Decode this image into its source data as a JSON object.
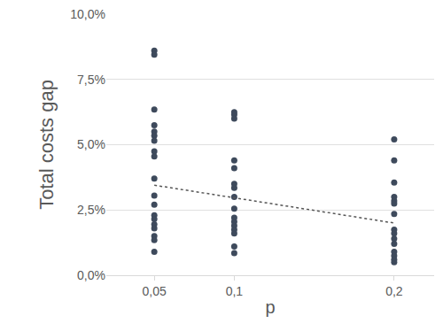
{
  "chart_data": {
    "type": "scatter",
    "x_label": "p",
    "y_label": "Total costs gap",
    "xlim": [
      0.02,
      0.225
    ],
    "xticks": [
      {
        "value": 0.05,
        "label": "0,05"
      },
      {
        "value": 0.1,
        "label": "0,1"
      },
      {
        "value": 0.2,
        "label": "0,2"
      }
    ],
    "ylim": [
      0,
      10
    ],
    "yticks": [
      {
        "value": 0,
        "label": "0,0%"
      },
      {
        "value": 2.5,
        "label": "2,5%"
      },
      {
        "value": 5,
        "label": "5,0%"
      },
      {
        "value": 7.5,
        "label": "7,5%"
      },
      {
        "value": 10,
        "label": "10,0%"
      }
    ],
    "grid": true,
    "series": [
      {
        "type": "scatter",
        "marker": "circle",
        "color": "#3e4a5c",
        "x": [
          0.05,
          0.05,
          0.05,
          0.05,
          0.05,
          0.05,
          0.05,
          0.05,
          0.05,
          0.05,
          0.05,
          0.05,
          0.05,
          0.05,
          0.05,
          0.05,
          0.05,
          0.05,
          0.05,
          0.1,
          0.1,
          0.1,
          0.1,
          0.1,
          0.1,
          0.1,
          0.1,
          0.1,
          0.1,
          0.1,
          0.1,
          0.1,
          0.1,
          0.1,
          0.1,
          0.2,
          0.2,
          0.2,
          0.2,
          0.2,
          0.2,
          0.2,
          0.2,
          0.2,
          0.2,
          0.2,
          0.2,
          0.2,
          0.2,
          0.2
        ],
        "values": [
          8.6,
          8.45,
          6.35,
          5.75,
          5.5,
          5.35,
          5.15,
          4.75,
          4.55,
          3.7,
          3.05,
          2.7,
          2.3,
          2.15,
          1.95,
          1.8,
          1.5,
          1.35,
          0.9,
          6.25,
          6.15,
          6.0,
          4.4,
          4.1,
          3.5,
          3.35,
          3.0,
          2.55,
          2.2,
          2.05,
          1.9,
          1.75,
          1.6,
          1.1,
          0.85,
          5.2,
          4.4,
          3.55,
          3.0,
          2.85,
          2.75,
          2.35,
          1.75,
          1.6,
          1.4,
          1.2,
          0.9,
          0.75,
          0.6,
          0.5
        ]
      },
      {
        "type": "line",
        "line_style": "dot",
        "color": "#555555",
        "x": [
          0.05,
          0.2
        ],
        "values": [
          3.45,
          2.0
        ]
      }
    ]
  }
}
